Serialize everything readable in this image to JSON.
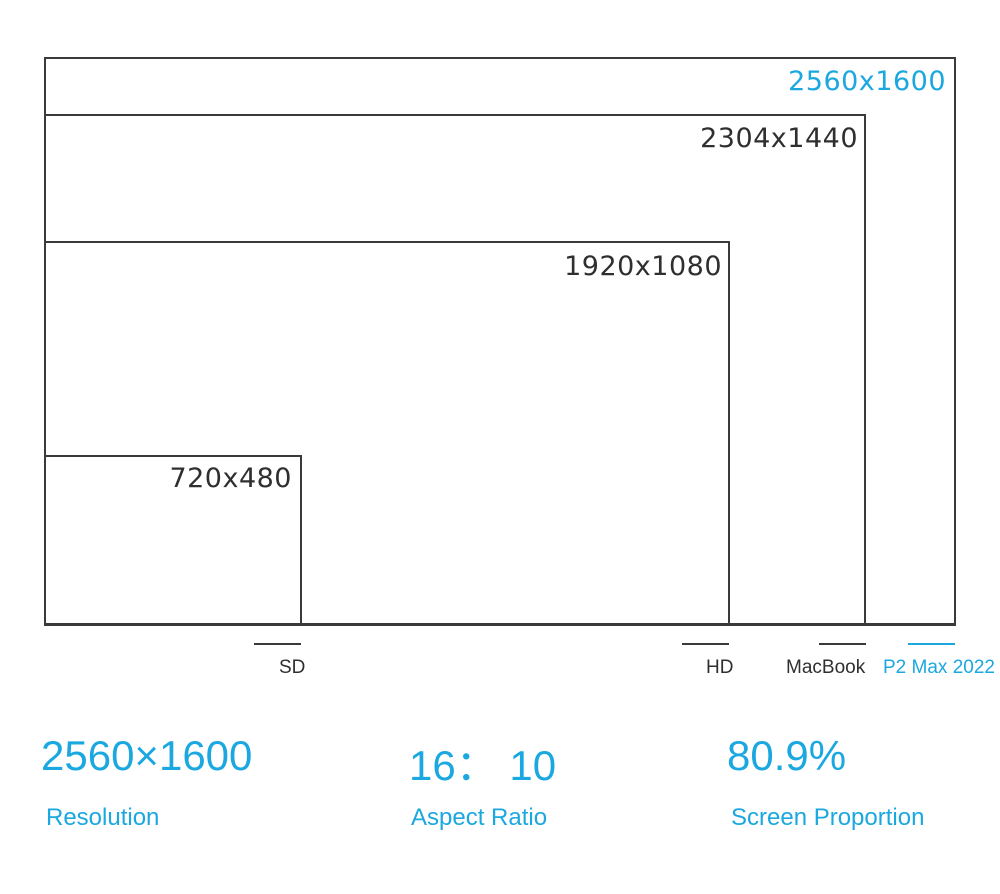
{
  "colors": {
    "accent": "#1ba7e0",
    "outline": "#3a3a3a",
    "text": "#2f2f2f"
  },
  "resolutions": [
    {
      "label": "2560x1600",
      "width": 2560,
      "height": 1600,
      "accent": true
    },
    {
      "label": "2304x1440",
      "width": 2304,
      "height": 1440,
      "accent": false
    },
    {
      "label": "1920x1080",
      "width": 1920,
      "height": 1080,
      "accent": false
    },
    {
      "label": "720x480",
      "width": 720,
      "height": 480,
      "accent": false
    }
  ],
  "legend": [
    {
      "label": "SD"
    },
    {
      "label": "HD"
    },
    {
      "label": "MacBook"
    },
    {
      "label": "P2 Max 2022"
    }
  ],
  "stats": [
    {
      "value": "2560×1600",
      "label": "Resolution"
    },
    {
      "value": "16： 10",
      "label": "Aspect Ratio"
    },
    {
      "value": "80.9%",
      "label": "Screen Proportion"
    }
  ]
}
